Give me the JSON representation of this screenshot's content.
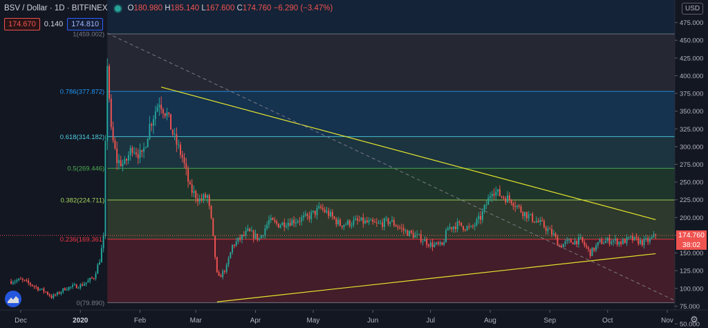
{
  "header": {
    "symbol": "BSV / Dollar · 1D · BITFINEX",
    "o_label": "O",
    "o_value": "180.980",
    "h_label": "H",
    "h_value": "185.140",
    "l_label": "L",
    "l_value": "167.600",
    "c_label": "C",
    "c_value": "174.760",
    "change": "−6.290 (−3.47%)"
  },
  "trade": {
    "sell": "174.670",
    "spread": "0.140",
    "buy": "174.810"
  },
  "currency": "USD",
  "price_tag": "174.760",
  "countdown": "38:02",
  "colors": {
    "accent": "#2962ff",
    "up": "#26a69a",
    "down": "#ef5350",
    "trendline": "#e6e62e"
  },
  "icons": {
    "settings": "gear-icon",
    "logo": "tradingview-logo-icon",
    "live": "status-dot-icon"
  },
  "chart_data": {
    "type": "candlestick",
    "x_tick_labels": [
      "Dec",
      "2020",
      "Feb",
      "Mar",
      "Apr",
      "May",
      "Jun",
      "Jul",
      "Aug",
      "Sep",
      "Oct",
      "Nov"
    ],
    "y_ticks": [
      50,
      75,
      100,
      125,
      150,
      175,
      200,
      225,
      250,
      275,
      300,
      325,
      350,
      375,
      400,
      425,
      450,
      475
    ],
    "y_tick_labels": [
      "50.000",
      "75.000",
      "100.000",
      "125.000",
      "150.000",
      "175.000",
      "200.000",
      "225.000",
      "250.000",
      "275.000",
      "300.000",
      "325.000",
      "350.000",
      "375.000",
      "400.000",
      "425.000",
      "450.000",
      "475.000"
    ],
    "ylim": [
      45,
      505
    ],
    "fib_levels": [
      {
        "ratio": 1,
        "value": 459.002,
        "label": "1(459.002)",
        "color": "#787b86"
      },
      {
        "ratio": 0.786,
        "value": 377.872,
        "label": "0.786(377.872)",
        "color": "#2196f3"
      },
      {
        "ratio": 0.618,
        "value": 314.182,
        "label": "0.618(314.182)",
        "color": "#4dd0e1"
      },
      {
        "ratio": 0.5,
        "value": 269.446,
        "label": "0.5(269.446)",
        "color": "#4caf50"
      },
      {
        "ratio": 0.382,
        "value": 224.711,
        "label": "0.382(224.711)",
        "color": "#a5d65c"
      },
      {
        "ratio": 0.236,
        "value": 169.361,
        "label": "0.236(169.361)",
        "color": "#f23645"
      },
      {
        "ratio": 0,
        "value": 79.89,
        "label": "0(79.890)",
        "color": "#787b86"
      }
    ],
    "trendlines": [
      {
        "name": "upper",
        "color": "#e6e62e",
        "from": [
          "2020-02-12",
          384
        ],
        "to": [
          "2020-10-26",
          197
        ]
      },
      {
        "name": "lower",
        "color": "#e6e62e",
        "from": [
          "2020-03-12",
          81
        ],
        "to": [
          "2020-10-26",
          149
        ]
      },
      {
        "name": "dashed",
        "color": "#787b86",
        "from": [
          "2020-01-15",
          460
        ],
        "to": [
          "2020-11-08",
          79
        ]
      }
    ],
    "price_anchors": [
      [
        "2019-11-26",
        110
      ],
      [
        "2019-12-01",
        112
      ],
      [
        "2019-12-06",
        106
      ],
      [
        "2019-12-10",
        100
      ],
      [
        "2019-12-14",
        95
      ],
      [
        "2019-12-17",
        88
      ],
      [
        "2019-12-20",
        92
      ],
      [
        "2019-12-24",
        100
      ],
      [
        "2019-12-29",
        103
      ],
      [
        "2020-01-01",
        104
      ],
      [
        "2020-01-05",
        110
      ],
      [
        "2020-01-08",
        116
      ],
      [
        "2020-01-11",
        140
      ],
      [
        "2020-01-13",
        170
      ],
      [
        "2020-01-14",
        300
      ],
      [
        "2020-01-15",
        420
      ],
      [
        "2020-01-17",
        320
      ],
      [
        "2020-01-20",
        280
      ],
      [
        "2020-01-24",
        275
      ],
      [
        "2020-01-28",
        300
      ],
      [
        "2020-02-02",
        285
      ],
      [
        "2020-02-06",
        330
      ],
      [
        "2020-02-11",
        365
      ],
      [
        "2020-02-15",
        345
      ],
      [
        "2020-02-19",
        310
      ],
      [
        "2020-02-23",
        285
      ],
      [
        "2020-02-27",
        240
      ],
      [
        "2020-03-03",
        225
      ],
      [
        "2020-03-07",
        230
      ],
      [
        "2020-03-09",
        195
      ],
      [
        "2020-03-12",
        120
      ],
      [
        "2020-03-13",
        115
      ],
      [
        "2020-03-17",
        130
      ],
      [
        "2020-03-20",
        160
      ],
      [
        "2020-03-24",
        170
      ],
      [
        "2020-03-28",
        180
      ],
      [
        "2020-04-03",
        170
      ],
      [
        "2020-04-08",
        195
      ],
      [
        "2020-04-13",
        190
      ],
      [
        "2020-04-20",
        195
      ],
      [
        "2020-04-28",
        200
      ],
      [
        "2020-05-05",
        213
      ],
      [
        "2020-05-09",
        205
      ],
      [
        "2020-05-15",
        190
      ],
      [
        "2020-05-25",
        195
      ],
      [
        "2020-06-03",
        190
      ],
      [
        "2020-06-10",
        195
      ],
      [
        "2020-06-18",
        180
      ],
      [
        "2020-06-25",
        172
      ],
      [
        "2020-07-01",
        162
      ],
      [
        "2020-07-07",
        160
      ],
      [
        "2020-07-10",
        185
      ],
      [
        "2020-07-15",
        190
      ],
      [
        "2020-07-22",
        184
      ],
      [
        "2020-07-27",
        200
      ],
      [
        "2020-07-31",
        225
      ],
      [
        "2020-08-02",
        240
      ],
      [
        "2020-08-07",
        230
      ],
      [
        "2020-08-12",
        225
      ],
      [
        "2020-08-17",
        210
      ],
      [
        "2020-08-22",
        200
      ],
      [
        "2020-08-28",
        190
      ],
      [
        "2020-09-03",
        175
      ],
      [
        "2020-09-06",
        160
      ],
      [
        "2020-09-10",
        165
      ],
      [
        "2020-09-17",
        168
      ],
      [
        "2020-09-22",
        150
      ],
      [
        "2020-09-27",
        165
      ],
      [
        "2020-10-03",
        168
      ],
      [
        "2020-10-08",
        165
      ],
      [
        "2020-10-13",
        170
      ],
      [
        "2020-10-19",
        165
      ],
      [
        "2020-10-23",
        168
      ],
      [
        "2020-10-26",
        174.76
      ]
    ],
    "last_price": 174.76
  }
}
